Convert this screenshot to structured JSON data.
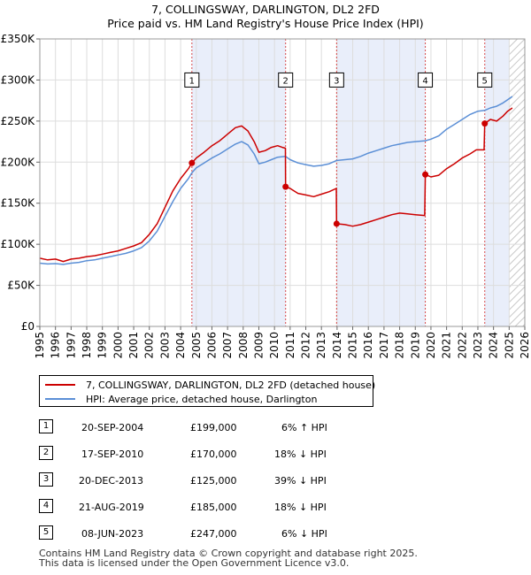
{
  "title": {
    "line1": "7, COLLINGSWAY, DARLINGTON, DL2 2FD",
    "line2": "Price paid vs. HM Land Registry's House Price Index (HPI)"
  },
  "chart_data": {
    "type": "line",
    "xlim": [
      1995,
      2026
    ],
    "ylim": [
      0,
      350000
    ],
    "y_ticks": [
      {
        "value": 0,
        "label": "£0"
      },
      {
        "value": 50000,
        "label": "£50K"
      },
      {
        "value": 100000,
        "label": "£100K"
      },
      {
        "value": 150000,
        "label": "£150K"
      },
      {
        "value": 200000,
        "label": "£200K"
      },
      {
        "value": 250000,
        "label": "£250K"
      },
      {
        "value": 300000,
        "label": "£300K"
      },
      {
        "value": 350000,
        "label": "£350K"
      }
    ],
    "x_ticks": [
      "1995",
      "1996",
      "1997",
      "1998",
      "1999",
      "2000",
      "2001",
      "2002",
      "2003",
      "2004",
      "2005",
      "2006",
      "2007",
      "2008",
      "2009",
      "2010",
      "2011",
      "2012",
      "2013",
      "2014",
      "2015",
      "2016",
      "2017",
      "2018",
      "2019",
      "2020",
      "2021",
      "2022",
      "2023",
      "2024",
      "2025",
      "2026"
    ],
    "forecast_start": 2025.0,
    "series": [
      {
        "name": "7, COLLINGSWAY, DARLINGTON, DL2 2FD (detached house)",
        "color": "#cc0000",
        "points": [
          [
            1995.0,
            83000
          ],
          [
            1995.5,
            81000
          ],
          [
            1996.0,
            82000
          ],
          [
            1996.5,
            79000
          ],
          [
            1997.0,
            82000
          ],
          [
            1997.5,
            83000
          ],
          [
            1998.0,
            85000
          ],
          [
            1998.5,
            86000
          ],
          [
            1999.0,
            88000
          ],
          [
            1999.5,
            90000
          ],
          [
            2000.0,
            92000
          ],
          [
            2000.5,
            95000
          ],
          [
            2001.0,
            98000
          ],
          [
            2001.5,
            102000
          ],
          [
            2002.0,
            112000
          ],
          [
            2002.5,
            125000
          ],
          [
            2003.0,
            145000
          ],
          [
            2003.5,
            165000
          ],
          [
            2004.0,
            180000
          ],
          [
            2004.5,
            192000
          ],
          [
            2004.72,
            199000
          ],
          [
            2005.0,
            205000
          ],
          [
            2005.5,
            212000
          ],
          [
            2006.0,
            220000
          ],
          [
            2006.5,
            226000
          ],
          [
            2007.0,
            234000
          ],
          [
            2007.5,
            242000
          ],
          [
            2007.9,
            244000
          ],
          [
            2008.3,
            238000
          ],
          [
            2008.7,
            225000
          ],
          [
            2009.0,
            212000
          ],
          [
            2009.4,
            214000
          ],
          [
            2009.8,
            218000
          ],
          [
            2010.2,
            220000
          ],
          [
            2010.5,
            218000
          ],
          [
            2010.7,
            217000
          ],
          [
            2010.71,
            170000
          ],
          [
            2011.0,
            168000
          ],
          [
            2011.5,
            162000
          ],
          [
            2012.0,
            160000
          ],
          [
            2012.5,
            158000
          ],
          [
            2013.0,
            161000
          ],
          [
            2013.5,
            164000
          ],
          [
            2013.95,
            168000
          ],
          [
            2013.97,
            125000
          ],
          [
            2014.5,
            124000
          ],
          [
            2015.0,
            122000
          ],
          [
            2015.5,
            124000
          ],
          [
            2016.0,
            127000
          ],
          [
            2016.5,
            130000
          ],
          [
            2017.0,
            133000
          ],
          [
            2017.5,
            136000
          ],
          [
            2018.0,
            138000
          ],
          [
            2018.5,
            137000
          ],
          [
            2019.0,
            136000
          ],
          [
            2019.6,
            135000
          ],
          [
            2019.64,
            185000
          ],
          [
            2020.0,
            182000
          ],
          [
            2020.5,
            184000
          ],
          [
            2021.0,
            192000
          ],
          [
            2021.5,
            198000
          ],
          [
            2022.0,
            205000
          ],
          [
            2022.5,
            210000
          ],
          [
            2022.9,
            215000
          ],
          [
            2023.4,
            215000
          ],
          [
            2023.44,
            247000
          ],
          [
            2023.8,
            252000
          ],
          [
            2024.2,
            250000
          ],
          [
            2024.6,
            256000
          ],
          [
            2024.9,
            262000
          ],
          [
            2025.2,
            266000
          ]
        ]
      },
      {
        "name": "HPI: Average price, detached house, Darlington",
        "color": "#5b8fd6",
        "points": [
          [
            1995.0,
            77000
          ],
          [
            1995.5,
            76000
          ],
          [
            1996.0,
            76500
          ],
          [
            1996.5,
            75500
          ],
          [
            1997.0,
            77000
          ],
          [
            1997.5,
            78000
          ],
          [
            1998.0,
            80000
          ],
          [
            1998.5,
            81000
          ],
          [
            1999.0,
            83000
          ],
          [
            1999.5,
            85000
          ],
          [
            2000.0,
            87000
          ],
          [
            2000.5,
            89000
          ],
          [
            2001.0,
            92000
          ],
          [
            2001.5,
            96000
          ],
          [
            2002.0,
            104000
          ],
          [
            2002.5,
            116000
          ],
          [
            2003.0,
            134000
          ],
          [
            2003.5,
            152000
          ],
          [
            2004.0,
            168000
          ],
          [
            2004.5,
            180000
          ],
          [
            2004.72,
            187000
          ],
          [
            2005.0,
            193000
          ],
          [
            2005.5,
            199000
          ],
          [
            2006.0,
            205000
          ],
          [
            2006.5,
            210000
          ],
          [
            2007.0,
            216000
          ],
          [
            2007.5,
            222000
          ],
          [
            2007.9,
            225000
          ],
          [
            2008.3,
            221000
          ],
          [
            2008.7,
            210000
          ],
          [
            2009.0,
            198000
          ],
          [
            2009.4,
            200000
          ],
          [
            2009.8,
            203000
          ],
          [
            2010.2,
            206000
          ],
          [
            2010.71,
            207000
          ],
          [
            2011.0,
            203000
          ],
          [
            2011.5,
            199000
          ],
          [
            2012.0,
            197000
          ],
          [
            2012.5,
            195000
          ],
          [
            2013.0,
            196000
          ],
          [
            2013.5,
            198000
          ],
          [
            2013.97,
            202000
          ],
          [
            2014.5,
            203000
          ],
          [
            2015.0,
            204000
          ],
          [
            2015.5,
            207000
          ],
          [
            2016.0,
            211000
          ],
          [
            2016.5,
            214000
          ],
          [
            2017.0,
            217000
          ],
          [
            2017.5,
            220000
          ],
          [
            2018.0,
            222000
          ],
          [
            2018.5,
            224000
          ],
          [
            2019.0,
            225000
          ],
          [
            2019.64,
            226000
          ],
          [
            2020.0,
            228000
          ],
          [
            2020.5,
            232000
          ],
          [
            2021.0,
            240000
          ],
          [
            2021.5,
            246000
          ],
          [
            2022.0,
            252000
          ],
          [
            2022.5,
            258000
          ],
          [
            2023.0,
            262000
          ],
          [
            2023.44,
            263000
          ],
          [
            2023.8,
            266000
          ],
          [
            2024.2,
            268000
          ],
          [
            2024.6,
            272000
          ],
          [
            2024.9,
            276000
          ],
          [
            2025.2,
            280000
          ]
        ]
      }
    ],
    "sales": [
      {
        "id": "1",
        "x": 2004.72,
        "value": 199000
      },
      {
        "id": "2",
        "x": 2010.71,
        "value": 170000
      },
      {
        "id": "3",
        "x": 2013.97,
        "value": 125000
      },
      {
        "id": "4",
        "x": 2019.64,
        "value": 185000
      },
      {
        "id": "5",
        "x": 2023.44,
        "value": 247000
      }
    ],
    "highlight_bands": [
      [
        2004.72,
        2010.71
      ],
      [
        2013.97,
        2019.64
      ],
      [
        2023.44,
        2025.0
      ]
    ],
    "marker_label_value": 300000
  },
  "legend": {
    "items": [
      {
        "label": "7, COLLINGSWAY, DARLINGTON, DL2 2FD (detached house)",
        "color": "#cc0000"
      },
      {
        "label": "HPI: Average price, detached house, Darlington",
        "color": "#5b8fd6"
      }
    ]
  },
  "sales_table": [
    {
      "id": "1",
      "date": "20-SEP-2004",
      "price": "£199,000",
      "delta": "6% ↑ HPI"
    },
    {
      "id": "2",
      "date": "17-SEP-2010",
      "price": "£170,000",
      "delta": "18% ↓ HPI"
    },
    {
      "id": "3",
      "date": "20-DEC-2013",
      "price": "£125,000",
      "delta": "39% ↓ HPI"
    },
    {
      "id": "4",
      "date": "21-AUG-2019",
      "price": "£185,000",
      "delta": "18% ↓ HPI"
    },
    {
      "id": "5",
      "date": "08-JUN-2023",
      "price": "£247,000",
      "delta": "6% ↓ HPI"
    }
  ],
  "footer": {
    "line1": "Contains HM Land Registry data © Crown copyright and database right 2025.",
    "line2": "This data is licensed under the Open Government Licence v3.0."
  }
}
